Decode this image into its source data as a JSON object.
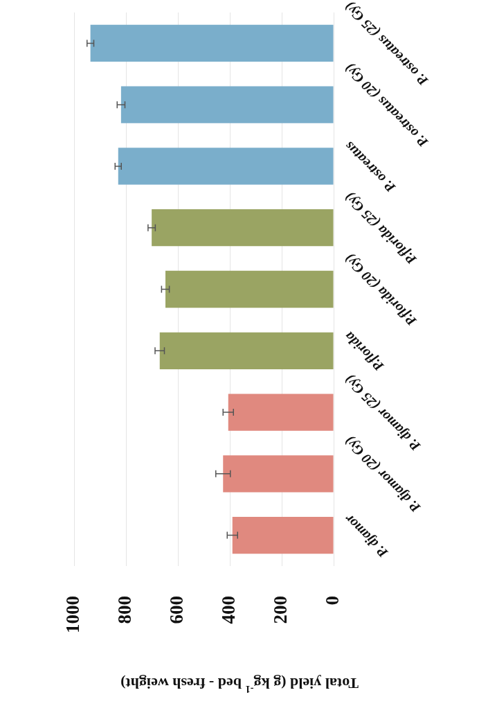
{
  "chart_data": {
    "type": "bar",
    "orientation": "horizontal",
    "xlabel": "Total yield (g kg$^{-1}$ bed - fresh weight)",
    "categories": [
      "P. ostreatus (25 Gy)",
      "P. ostreatus (20 Gy)",
      "P. ostreatus",
      "P.florida (25 Gy)",
      "P.florida (20 Gy)",
      "P.florida",
      "P. djamor (25 Gy)",
      "P. djamor (20 Gy)",
      "P. djamor"
    ],
    "values": [
      937,
      819,
      830,
      701,
      648,
      670,
      406,
      426,
      390
    ],
    "errors": [
      13,
      15,
      12,
      14,
      15,
      18,
      20,
      28,
      20
    ],
    "colors": [
      "#7aaecb",
      "#7aaecb",
      "#7aaecb",
      "#9aa463",
      "#9aa463",
      "#9aa463",
      "#e0897f",
      "#e0897f",
      "#e0897f"
    ],
    "xlim": [
      1000,
      0
    ],
    "xticks": [
      0,
      200,
      400,
      600,
      800,
      1000
    ],
    "grid": "x"
  }
}
